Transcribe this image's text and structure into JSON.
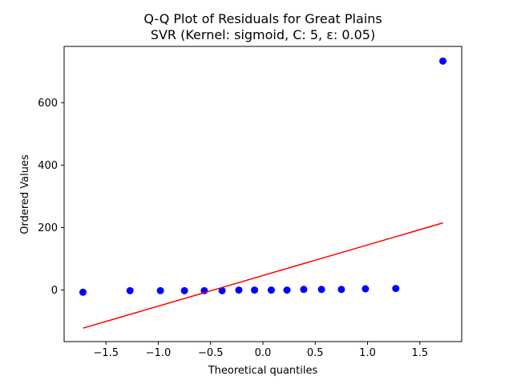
{
  "chart_data": {
    "type": "scatter",
    "title": "Q-Q Plot of Residuals for Great Plains",
    "subtitle": "SVR (Kernel: sigmoid, C: 5, ε: 0.05)",
    "xlabel": "Theoretical quantiles",
    "ylabel": "Ordered Values",
    "xlim": [
      -1.9,
      1.9
    ],
    "ylim": [
      -165,
      780
    ],
    "xticks": [
      -1.5,
      -1.0,
      -0.5,
      0.0,
      0.5,
      1.0,
      1.5
    ],
    "xtick_labels": [
      "−1.5",
      "−1.0",
      "−0.5",
      "0.0",
      "0.5",
      "1.0",
      "1.5"
    ],
    "yticks": [
      0,
      200,
      400,
      600
    ],
    "ytick_labels": [
      "0",
      "200",
      "400",
      "600"
    ],
    "grid": false,
    "series": [
      {
        "kind": "points",
        "color": "#0000ff",
        "x": [
          -1.72,
          -1.27,
          -0.98,
          -0.75,
          -0.56,
          -0.39,
          -0.23,
          -0.08,
          0.08,
          0.23,
          0.39,
          0.56,
          0.75,
          0.98,
          1.27,
          1.72
        ],
        "y": [
          -7,
          -2,
          -2,
          -2,
          -2,
          -2,
          0,
          0,
          0,
          0,
          2,
          2,
          2,
          4,
          5,
          733
        ]
      },
      {
        "kind": "fit-line",
        "color": "#ff0000",
        "x": [
          -1.72,
          1.72
        ],
        "y": [
          -122,
          215
        ]
      }
    ]
  }
}
